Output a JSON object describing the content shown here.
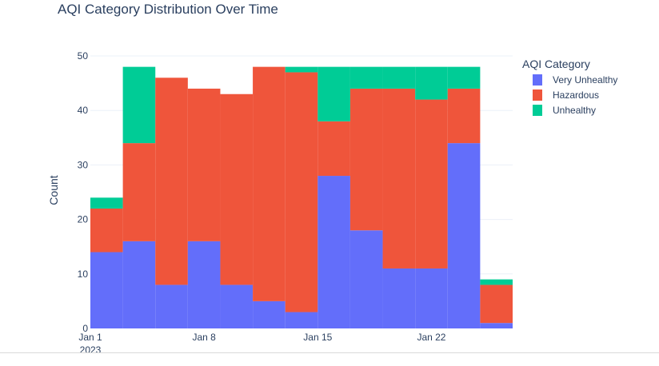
{
  "chart_data": {
    "type": "bar",
    "title": "AQI Category Distribution Over Time",
    "xlabel": "",
    "ylabel": "Count",
    "ylim": [
      0,
      50
    ],
    "yticks": [
      0,
      10,
      20,
      30,
      40,
      50
    ],
    "xticks": [
      {
        "date": "2023-01-01",
        "label": "Jan 1",
        "sublabel": "2023"
      },
      {
        "date": "2023-01-08",
        "label": "Jan 8",
        "sublabel": ""
      },
      {
        "date": "2023-01-15",
        "label": "Jan 15",
        "sublabel": ""
      },
      {
        "date": "2023-01-22",
        "label": "Jan 22",
        "sublabel": ""
      }
    ],
    "bin_starts": [
      "2023-01-01",
      "2023-01-03",
      "2023-01-05",
      "2023-01-07",
      "2023-01-09",
      "2023-01-11",
      "2023-01-13",
      "2023-01-15",
      "2023-01-17",
      "2023-01-19",
      "2023-01-21",
      "2023-01-23",
      "2023-01-25"
    ],
    "bin_days": 2,
    "legend_title": "AQI Category",
    "legend_position": "top-right",
    "grid": true,
    "series": [
      {
        "name": "Very Unhealthy",
        "color": "#636efa",
        "values": [
          14,
          16,
          8,
          16,
          8,
          5,
          3,
          28,
          18,
          11,
          11,
          34,
          1
        ]
      },
      {
        "name": "Hazardous",
        "color": "#ef553b",
        "values": [
          8,
          18,
          38,
          28,
          35,
          43,
          44,
          10,
          26,
          33,
          31,
          10,
          7
        ]
      },
      {
        "name": "Unhealthy",
        "color": "#00cc96",
        "values": [
          2,
          14,
          0,
          0,
          0,
          0,
          1,
          10,
          4,
          4,
          6,
          4,
          1
        ]
      }
    ]
  }
}
